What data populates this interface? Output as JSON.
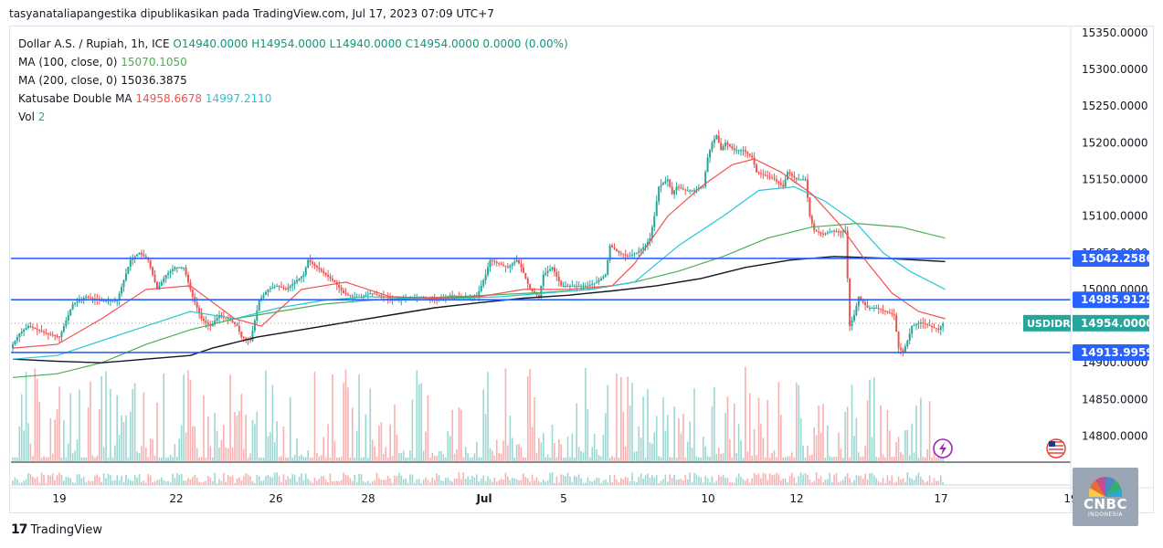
{
  "header": {
    "published": "tasyanataliapangestika dipublikasikan pada TradingView.com, Jul 17, 2023 07:09 UTC+7"
  },
  "legend": {
    "symbol": "Dollar A.S. / Rupiah, 1h, ICE",
    "open": "O14940.0000",
    "high": "H14954.0000",
    "low": "L14940.0000",
    "close": "C14954.0000",
    "change": "0.0000 (0.00%)",
    "ma100_label": "MA (100, close, 0)",
    "ma100_value": "15070.1050",
    "ma200_label": "MA (200, close, 0)",
    "ma200_value": "15036.3875",
    "double_label": "Katusabe Double MA",
    "double_value1": "14958.6678",
    "double_value2": "14997.2110",
    "vol_label": "Vol",
    "vol_value": "2"
  },
  "footer": {
    "brand": "TradingView"
  },
  "watermark": {
    "brand": "CNBC",
    "sub": "INDONESIA"
  },
  "colors": {
    "up": "#26a69a",
    "down": "#ef5350",
    "ma_red": "#ef5350",
    "ma_teal": "#26c6da",
    "ma100": "#4caf50",
    "ma200": "#131722",
    "hline": "#2962ff",
    "badge_teal": "#26a69a"
  },
  "chart_data": {
    "type": "candlestick",
    "x_ticks": [
      "19",
      "22",
      "26",
      "28",
      "Jul",
      "5",
      "10",
      "12",
      "17",
      "19"
    ],
    "y_ticks": [
      "15350.0000",
      "15300.0000",
      "15250.0000",
      "15200.0000",
      "15150.0000",
      "15100.0000",
      "15050.0000",
      "15000.0000",
      "14950.0000",
      "14900.0000",
      "14850.0000",
      "14800.0000"
    ],
    "ylim": [
      14770,
      15350
    ],
    "levels": [
      {
        "value": 15042.2586,
        "label": "15042.2586"
      },
      {
        "value": 14985.9129,
        "label": "14985.9129"
      },
      {
        "value": 14913.9959,
        "label": "14913.9959"
      }
    ],
    "last_price": {
      "symbol": "USDIDR",
      "value": 14954.0,
      "label": "14954.0000"
    },
    "price_path": [
      [
        0,
        14920
      ],
      [
        4,
        14940
      ],
      [
        8,
        14950
      ],
      [
        12,
        14945
      ],
      [
        16,
        14940
      ],
      [
        22,
        14935
      ],
      [
        28,
        14980
      ],
      [
        34,
        14990
      ],
      [
        40,
        14985
      ],
      [
        48,
        14985
      ],
      [
        54,
        15040
      ],
      [
        58,
        15050
      ],
      [
        62,
        15040
      ],
      [
        66,
        15000
      ],
      [
        70,
        15020
      ],
      [
        74,
        15030
      ],
      [
        78,
        15030
      ],
      [
        82,
        14990
      ],
      [
        86,
        14960
      ],
      [
        90,
        14950
      ],
      [
        94,
        14965
      ],
      [
        98,
        14960
      ],
      [
        102,
        14950
      ],
      [
        104,
        14935
      ],
      [
        108,
        14930
      ],
      [
        112,
        14985
      ],
      [
        116,
        15000
      ],
      [
        120,
        15005
      ],
      [
        124,
        15000
      ],
      [
        128,
        15010
      ],
      [
        132,
        15020
      ],
      [
        134,
        15040
      ],
      [
        138,
        15030
      ],
      [
        142,
        15020
      ],
      [
        146,
        15010
      ],
      [
        150,
        14995
      ],
      [
        154,
        14990
      ],
      [
        158,
        14990
      ],
      [
        162,
        14995
      ],
      [
        168,
        14990
      ],
      [
        174,
        14985
      ],
      [
        180,
        14990
      ],
      [
        186,
        14990
      ],
      [
        192,
        14985
      ],
      [
        198,
        14992
      ],
      [
        204,
        14990
      ],
      [
        210,
        14990
      ],
      [
        214,
        15020
      ],
      [
        216,
        15040
      ],
      [
        220,
        15035
      ],
      [
        224,
        15030
      ],
      [
        228,
        15040
      ],
      [
        230,
        15030
      ],
      [
        234,
        15000
      ],
      [
        238,
        14990
      ],
      [
        240,
        15020
      ],
      [
        244,
        15030
      ],
      [
        248,
        15005
      ],
      [
        252,
        15005
      ],
      [
        256,
        15005
      ],
      [
        260,
        15005
      ],
      [
        264,
        15010
      ],
      [
        268,
        15020
      ],
      [
        270,
        15060
      ],
      [
        272,
        15055
      ],
      [
        274,
        15050
      ],
      [
        278,
        15045
      ],
      [
        282,
        15050
      ],
      [
        286,
        15060
      ],
      [
        288,
        15070
      ],
      [
        290,
        15100
      ],
      [
        292,
        15140
      ],
      [
        296,
        15150
      ],
      [
        298,
        15130
      ],
      [
        300,
        15140
      ],
      [
        304,
        15135
      ],
      [
        308,
        15135
      ],
      [
        312,
        15140
      ],
      [
        314,
        15180
      ],
      [
        316,
        15200
      ],
      [
        318,
        15210
      ],
      [
        320,
        15190
      ],
      [
        322,
        15200
      ],
      [
        326,
        15190
      ],
      [
        330,
        15190
      ],
      [
        334,
        15180
      ],
      [
        336,
        15160
      ],
      [
        340,
        15155
      ],
      [
        344,
        15150
      ],
      [
        348,
        15140
      ],
      [
        350,
        15160
      ],
      [
        354,
        15150
      ],
      [
        358,
        15150
      ],
      [
        360,
        15100
      ],
      [
        362,
        15080
      ],
      [
        366,
        15075
      ],
      [
        370,
        15080
      ],
      [
        374,
        15078
      ],
      [
        376,
        15080
      ],
      [
        378,
        14950
      ],
      [
        380,
        14965
      ],
      [
        382,
        14990
      ],
      [
        386,
        14975
      ],
      [
        390,
        14975
      ],
      [
        394,
        14970
      ],
      [
        398,
        14965
      ],
      [
        400,
        14920
      ],
      [
        402,
        14915
      ],
      [
        404,
        14930
      ],
      [
        406,
        14950
      ],
      [
        410,
        14955
      ],
      [
        414,
        14950
      ],
      [
        418,
        14945
      ],
      [
        420,
        14954
      ]
    ],
    "ma_red_path": [
      [
        0,
        14920
      ],
      [
        20,
        14925
      ],
      [
        40,
        14960
      ],
      [
        60,
        15000
      ],
      [
        80,
        15005
      ],
      [
        100,
        14960
      ],
      [
        112,
        14950
      ],
      [
        130,
        15000
      ],
      [
        150,
        15010
      ],
      [
        170,
        14990
      ],
      [
        190,
        14988
      ],
      [
        210,
        14990
      ],
      [
        230,
        15000
      ],
      [
        250,
        15000
      ],
      [
        270,
        15005
      ],
      [
        280,
        15035
      ],
      [
        295,
        15100
      ],
      [
        310,
        15140
      ],
      [
        324,
        15170
      ],
      [
        334,
        15178
      ],
      [
        346,
        15160
      ],
      [
        360,
        15130
      ],
      [
        372,
        15090
      ],
      [
        384,
        15040
      ],
      [
        396,
        14995
      ],
      [
        408,
        14970
      ],
      [
        420,
        14960
      ]
    ],
    "ma_teal_path": [
      [
        0,
        14905
      ],
      [
        20,
        14910
      ],
      [
        40,
        14930
      ],
      [
        60,
        14950
      ],
      [
        80,
        14970
      ],
      [
        100,
        14960
      ],
      [
        120,
        14975
      ],
      [
        140,
        14985
      ],
      [
        160,
        14990
      ],
      [
        180,
        14988
      ],
      [
        200,
        14988
      ],
      [
        220,
        14990
      ],
      [
        240,
        14995
      ],
      [
        260,
        15000
      ],
      [
        280,
        15010
      ],
      [
        300,
        15060
      ],
      [
        320,
        15100
      ],
      [
        336,
        15135
      ],
      [
        352,
        15140
      ],
      [
        366,
        15120
      ],
      [
        380,
        15090
      ],
      [
        392,
        15050
      ],
      [
        404,
        15025
      ],
      [
        420,
        15000
      ]
    ],
    "ma100_path": [
      [
        0,
        14880
      ],
      [
        20,
        14885
      ],
      [
        40,
        14900
      ],
      [
        60,
        14925
      ],
      [
        80,
        14945
      ],
      [
        100,
        14960
      ],
      [
        120,
        14970
      ],
      [
        140,
        14980
      ],
      [
        160,
        14985
      ],
      [
        180,
        14988
      ],
      [
        200,
        14990
      ],
      [
        220,
        14993
      ],
      [
        240,
        14996
      ],
      [
        260,
        15000
      ],
      [
        280,
        15010
      ],
      [
        300,
        15025
      ],
      [
        320,
        15045
      ],
      [
        340,
        15070
      ],
      [
        360,
        15085
      ],
      [
        380,
        15090
      ],
      [
        400,
        15085
      ],
      [
        420,
        15070
      ]
    ],
    "ma200_path": [
      [
        0,
        14905
      ],
      [
        20,
        14902
      ],
      [
        40,
        14900
      ],
      [
        60,
        14905
      ],
      [
        80,
        14910
      ],
      [
        90,
        14920
      ],
      [
        110,
        14935
      ],
      [
        130,
        14945
      ],
      [
        150,
        14955
      ],
      [
        170,
        14965
      ],
      [
        190,
        14975
      ],
      [
        210,
        14982
      ],
      [
        230,
        14988
      ],
      [
        250,
        14992
      ],
      [
        270,
        14998
      ],
      [
        290,
        15005
      ],
      [
        310,
        15015
      ],
      [
        330,
        15030
      ],
      [
        350,
        15040
      ],
      [
        370,
        15045
      ],
      [
        390,
        15043
      ],
      [
        420,
        15038
      ]
    ]
  }
}
